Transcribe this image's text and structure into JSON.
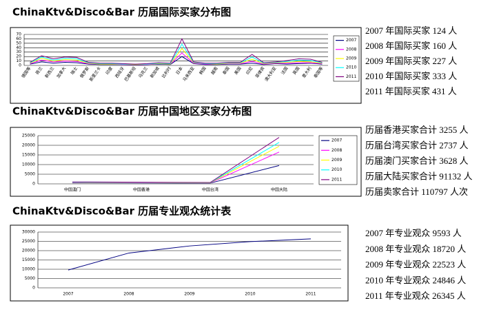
{
  "chart_data": [
    {
      "type": "line",
      "title": "ChinaKtv&Disco&Bar 历届国际买家分布图",
      "categories": [
        "德国等",
        "荷兰",
        "新西兰",
        "加拿大",
        "瑞士",
        "俄罗斯",
        "斯里兰卡",
        "印度",
        "西班牙",
        "巴基斯坦",
        "乌克兰",
        "新加坡",
        "比利时",
        "日本",
        "马来西亚",
        "韩国",
        "越南",
        "泰国",
        "美国",
        "印尼",
        "菲律宾",
        "澳大利亚",
        "法国",
        "英国",
        "意大利",
        "泰国等"
      ],
      "ylim": [
        0,
        70
      ],
      "yticks": [
        0,
        10,
        20,
        30,
        40,
        50,
        60,
        70
      ],
      "series": [
        {
          "name": "2007",
          "color": "#000080",
          "values": [
            3,
            8,
            5,
            7,
            6,
            3,
            2,
            2,
            2,
            1,
            2,
            3,
            2,
            20,
            4,
            2,
            2,
            3,
            3,
            5,
            2,
            4,
            3,
            4,
            5,
            3
          ]
        },
        {
          "name": "2008",
          "color": "#ff00ff",
          "values": [
            4,
            12,
            8,
            10,
            9,
            4,
            3,
            3,
            2,
            2,
            2,
            4,
            3,
            28,
            5,
            3,
            3,
            4,
            4,
            9,
            3,
            5,
            5,
            6,
            6,
            4
          ]
        },
        {
          "name": "2009",
          "color": "#ffff00",
          "values": [
            5,
            16,
            10,
            13,
            12,
            5,
            3,
            3,
            3,
            2,
            3,
            4,
            3,
            38,
            6,
            4,
            3,
            5,
            5,
            14,
            4,
            6,
            7,
            9,
            8,
            5
          ]
        },
        {
          "name": "2010",
          "color": "#00ffff",
          "values": [
            6,
            19,
            12,
            16,
            15,
            6,
            4,
            4,
            3,
            3,
            3,
            5,
            4,
            48,
            7,
            4,
            4,
            6,
            6,
            19,
            5,
            7,
            9,
            12,
            11,
            6
          ]
        },
        {
          "name": "2011",
          "color": "#800080",
          "values": [
            7,
            22,
            15,
            19,
            18,
            7,
            5,
            5,
            4,
            3,
            4,
            6,
            5,
            60,
            8,
            5,
            5,
            7,
            7,
            25,
            6,
            8,
            11,
            15,
            14,
            7
          ]
        }
      ],
      "side_notes": [
        "2007 年国际买家 124 人",
        "2008 年国际买家 160 人",
        "2009 年国际买家 227 人",
        "2010 年国际买家 333 人",
        "2011 年国际买家 431 人"
      ]
    },
    {
      "type": "line",
      "title": "ChinaKtv&Disco&Bar 历届中国地区买家分布图",
      "categories": [
        "中国澳门",
        "中国香港",
        "中国台湾",
        "中国大陆"
      ],
      "ylim": [
        0,
        25000
      ],
      "yticks": [
        0,
        5000,
        10000,
        15000,
        20000,
        25000
      ],
      "series": [
        {
          "name": "2007",
          "color": "#000080",
          "values": [
            500,
            450,
            380,
            9500
          ]
        },
        {
          "name": "2008",
          "color": "#ff00ff",
          "values": [
            600,
            550,
            480,
            16500
          ]
        },
        {
          "name": "2009",
          "color": "#ffff00",
          "values": [
            700,
            650,
            550,
            19500
          ]
        },
        {
          "name": "2010",
          "color": "#00ffff",
          "values": [
            800,
            750,
            630,
            21500
          ]
        },
        {
          "name": "2011",
          "color": "#800080",
          "values": [
            1000,
            850,
            700,
            24100
          ]
        }
      ],
      "side_notes": [
        "历届香港买家合计 3255 人",
        "历届台湾买家合计 2737 人",
        "历届澳门买家合计 3628 人",
        "历届大陆买家合计 91132 人",
        "历届卖家合计 110797 人次"
      ]
    },
    {
      "type": "line",
      "title": "ChinaKtv&Disco&Bar 历届专业观众统计表",
      "categories": [
        "2007",
        "2008",
        "2009",
        "2010",
        "2011"
      ],
      "ylim": [
        0,
        30000
      ],
      "yticks": [
        0,
        5000,
        10000,
        15000,
        20000,
        25000,
        30000
      ],
      "values": [
        9593,
        18720,
        22523,
        24846,
        26345
      ],
      "color": "#000080",
      "side_notes": [
        "2007 年专业观众 9593 人",
        "2008 年专业观众 18720 人",
        "2009 年专业观众 22523 人",
        "2010 年专业观众 24846 人",
        "2011 年专业观众 26345 人"
      ]
    }
  ]
}
